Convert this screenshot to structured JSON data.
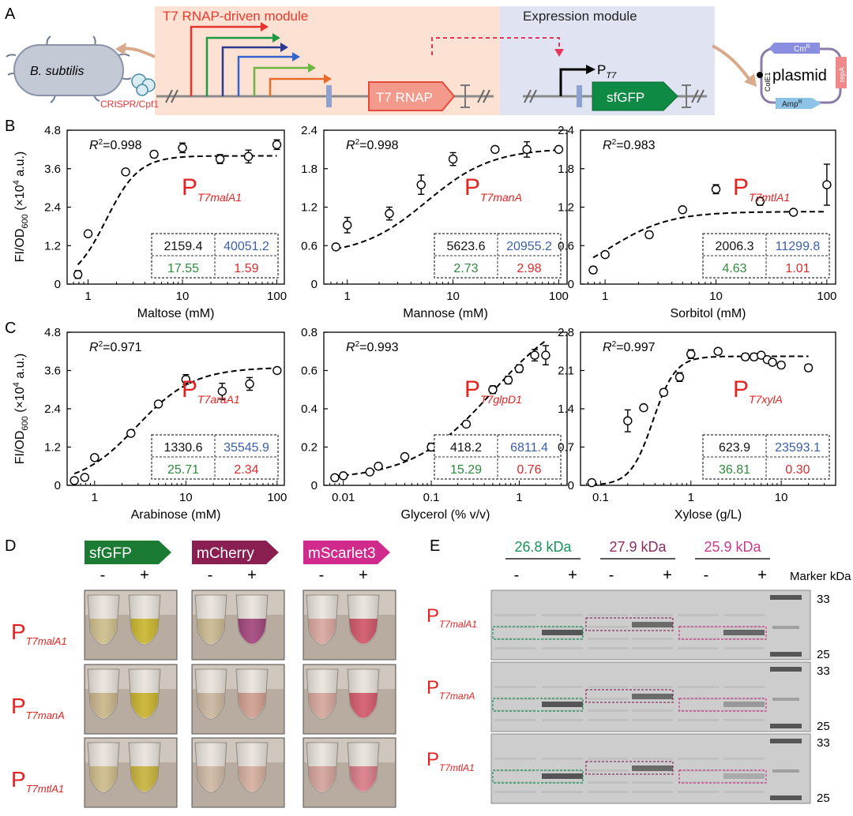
{
  "panels": {
    "A": "A",
    "B": "B",
    "C": "C",
    "D": "D",
    "E": "E"
  },
  "schematic": {
    "host": "B. subtilis",
    "crispr": "CRISPR/Cpf1",
    "module1_title": "T7 RNAP-driven module",
    "module2_title": "Expression module",
    "t7rnap": "T7 RNAP",
    "promoter": "P",
    "promoter_sub": "T7",
    "reporter": "sfGFP",
    "plasmid": "plasmid",
    "cm": "Cm",
    "amp": "Amp",
    "res_sup": "R",
    "cole1": "ColE1",
    "repa": "repA",
    "colors": {
      "module1_bg": "#fde1d3",
      "module2_bg": "#dfe3f2",
      "arrows": [
        "#e8322d",
        "#1e9a43",
        "#2b3990",
        "#3366cc",
        "#6ab63f",
        "#e86a2b"
      ]
    }
  },
  "common": {
    "ylabel_main": "FI/OD",
    "ylabel_sub": "600",
    "ylabel_unit": " (×10",
    "ylabel_exp": "4",
    "ylabel_end": " a.u.)",
    "r2": "R",
    "r2_exp": "2"
  },
  "chart_data": [
    {
      "id": "maltose",
      "type": "scatter",
      "xscale": "log",
      "xlim": [
        0.6,
        120
      ],
      "ylim": [
        0,
        4.8
      ],
      "yticks": [
        "0",
        "1.2",
        "2.4",
        "3.6",
        "4.8"
      ],
      "xticks": [
        "1",
        "10",
        "100"
      ],
      "xlabel": "Maltose (mM)",
      "r2": "=0.998",
      "promoter_sub": "T7malA1",
      "table": [
        "2159.4",
        "40051.2",
        "17.55",
        "1.59"
      ],
      "x": [
        0.78,
        1,
        2.5,
        5,
        10,
        25,
        50,
        100
      ],
      "y": [
        0.3,
        1.57,
        3.5,
        4.05,
        4.25,
        3.9,
        3.98,
        4.35
      ],
      "err": [
        0.12,
        0.08,
        0.08,
        0.1,
        0.15,
        0.14,
        0.2,
        0.15
      ],
      "fit": {
        "model": "hill",
        "top": 4.0,
        "k": 1.55,
        "n": 2.5
      }
    },
    {
      "id": "mannose",
      "type": "scatter",
      "xscale": "log",
      "xlim": [
        0.6,
        120
      ],
      "ylim": [
        0,
        2.4
      ],
      "yticks": [
        "0",
        "0.6",
        "1.2",
        "1.8",
        "2.4"
      ],
      "xticks": [
        "1",
        "10",
        "100"
      ],
      "xlabel": "Mannose (mM)",
      "r2": "=0.998",
      "promoter_sub": "T7manA",
      "table": [
        "5623.6",
        "20955.2",
        "2.73",
        "2.98"
      ],
      "x": [
        0.78,
        1,
        2.5,
        5,
        10,
        25,
        50,
        100
      ],
      "y": [
        0.58,
        0.92,
        1.1,
        1.55,
        1.95,
        2.1,
        2.1,
        2.1
      ],
      "err": [
        0.03,
        0.12,
        0.1,
        0.15,
        0.1,
        0.04,
        0.12,
        0.04
      ],
      "fit": {
        "model": "hill",
        "bottom": 0.45,
        "top": 2.12,
        "k": 5.6,
        "n": 1.4
      }
    },
    {
      "id": "sorbitol",
      "type": "scatter",
      "xscale": "log",
      "xlim": [
        0.6,
        120
      ],
      "ylim": [
        0,
        2.4
      ],
      "yticks": [
        "0",
        "0.6",
        "1.2",
        "1.8",
        "2.4"
      ],
      "xticks": [
        "1",
        "10",
        "100"
      ],
      "xlabel": "Sorbitol (mM)",
      "r2": "=0.983",
      "promoter_sub": "T7mtlA1",
      "table": [
        "2006.3",
        "11299.8",
        "4.63",
        "1.01"
      ],
      "x": [
        0.78,
        1,
        2.5,
        5,
        10,
        25,
        50,
        100
      ],
      "y": [
        0.22,
        0.46,
        0.77,
        1.16,
        1.48,
        1.29,
        1.12,
        1.55
      ],
      "err": [
        0.05,
        0.04,
        0.05,
        0.04,
        0.07,
        0.06,
        0.04,
        0.32
      ],
      "fit": {
        "model": "hill",
        "top": 1.13,
        "k": 1.1,
        "n": 1.6
      }
    },
    {
      "id": "arabinose",
      "type": "scatter",
      "xscale": "log",
      "xlim": [
        0.5,
        120
      ],
      "ylim": [
        0,
        4.8
      ],
      "yticks": [
        "0",
        "1.2",
        "2.4",
        "3.6",
        "4.8"
      ],
      "xticks": [
        "1",
        "10",
        "100"
      ],
      "xlabel": "Arabinose (mM)",
      "r2": "=0.971",
      "promoter_sub": "T7araA1",
      "table": [
        "1330.6",
        "35545.9",
        "25.71",
        "2.34"
      ],
      "x": [
        0.6,
        0.78,
        1,
        2.5,
        5,
        10,
        25,
        50,
        100
      ],
      "y": [
        0.15,
        0.25,
        0.87,
        1.63,
        2.55,
        3.32,
        2.95,
        3.18,
        3.6
      ],
      "err": [
        0.05,
        0.05,
        0.08,
        0.06,
        0.08,
        0.15,
        0.25,
        0.2,
        0.08
      ],
      "fit": {
        "model": "hill",
        "top": 3.7,
        "k": 2.9,
        "n": 1.4
      }
    },
    {
      "id": "glycerol",
      "type": "scatter",
      "xscale": "log",
      "xlim": [
        0.006,
        3.5
      ],
      "ylim": [
        0,
        0.8
      ],
      "yticks": [
        "0",
        "0.2",
        "0.4",
        "0.6",
        "0.8"
      ],
      "xticks": [
        "0.01",
        "0.1",
        "1"
      ],
      "xlabel": "Glycerol (% v/v)",
      "r2": "=0.993",
      "promoter_sub": "T7glpD1",
      "table": [
        "418.2",
        "6811.4",
        "15.29",
        "0.76"
      ],
      "x": [
        0.008,
        0.01,
        0.02,
        0.025,
        0.05,
        0.1,
        0.25,
        0.5,
        0.75,
        1,
        1.5,
        2
      ],
      "y": [
        0.04,
        0.05,
        0.07,
        0.1,
        0.15,
        0.2,
        0.32,
        0.5,
        0.55,
        0.61,
        0.68,
        0.68
      ],
      "err": [
        0.01,
        0.01,
        0.01,
        0.01,
        0.01,
        0.02,
        0.015,
        0.02,
        0.02,
        0.02,
        0.03,
        0.05
      ],
      "fit": {
        "model": "hill",
        "bottom": 0.03,
        "top": 0.95,
        "k": 0.5,
        "n": 0.95
      }
    },
    {
      "id": "xylose",
      "type": "scatter",
      "xscale": "log",
      "xlim": [
        0.06,
        40
      ],
      "ylim": [
        0,
        2.8
      ],
      "yticks": [
        "0",
        "0.7",
        "1.4",
        "2.1",
        "2.8"
      ],
      "xticks": [
        "0.1",
        "1",
        "10"
      ],
      "xlabel": "Xylose (g/L)",
      "r2": "=0.997",
      "promoter_sub": "T7xylA",
      "table": [
        "623.9",
        "23593.1",
        "36.81",
        "0.30"
      ],
      "x": [
        0.08,
        0.2,
        0.3,
        0.5,
        0.75,
        1,
        2,
        4,
        5,
        6,
        7,
        8,
        10,
        20
      ],
      "y": [
        0.05,
        1.18,
        1.42,
        1.7,
        1.98,
        2.4,
        2.45,
        2.35,
        2.35,
        2.38,
        2.3,
        2.25,
        2.2,
        2.15
      ],
      "err": [
        0.03,
        0.2,
        0.05,
        0.06,
        0.08,
        0.08,
        0.05,
        0.06,
        0.06,
        0.05,
        0.05,
        0.05,
        0.05,
        0.06
      ],
      "fit": {
        "model": "hill",
        "top": 2.36,
        "k": 0.38,
        "n": 3.5
      }
    }
  ],
  "panelD": {
    "proteins": [
      {
        "label": "sfGFP",
        "color": "#1b7a33"
      },
      {
        "label": "mCherry",
        "color": "#8a1f52"
      },
      {
        "label": "mScarlet3",
        "color": "#d12a8d"
      }
    ],
    "minus": "-",
    "plus": "+",
    "rows": [
      "T7malA1",
      "T7manA",
      "T7mtlA1"
    ],
    "tube_colors": [
      [
        [
          "#cdbd8a",
          "#c9b52c"
        ],
        [
          "#c9b88f",
          "#a0447a"
        ],
        [
          "#d7a59c",
          "#cf5466"
        ]
      ],
      [
        [
          "#c8b489",
          "#c8b22c"
        ],
        [
          "#cab59e",
          "#cf9d8e"
        ],
        [
          "#d4a59a",
          "#d2586a"
        ]
      ],
      [
        [
          "#ccba86",
          "#c7b23a"
        ],
        [
          "#cdb7a2",
          "#d4ad9c"
        ],
        [
          "#d2a097",
          "#d77a86"
        ]
      ]
    ]
  },
  "panelE": {
    "kda": [
      {
        "label": "26.8 kDa",
        "color": "#16935a"
      },
      {
        "label": "27.9 kDa",
        "color": "#8a2f5f"
      },
      {
        "label": "25.9 kDa",
        "color": "#cc3a8a"
      }
    ],
    "marker": "Marker kDa",
    "mw_top": "33",
    "mw_bottom": "25",
    "minus": "-",
    "plus": "+"
  }
}
